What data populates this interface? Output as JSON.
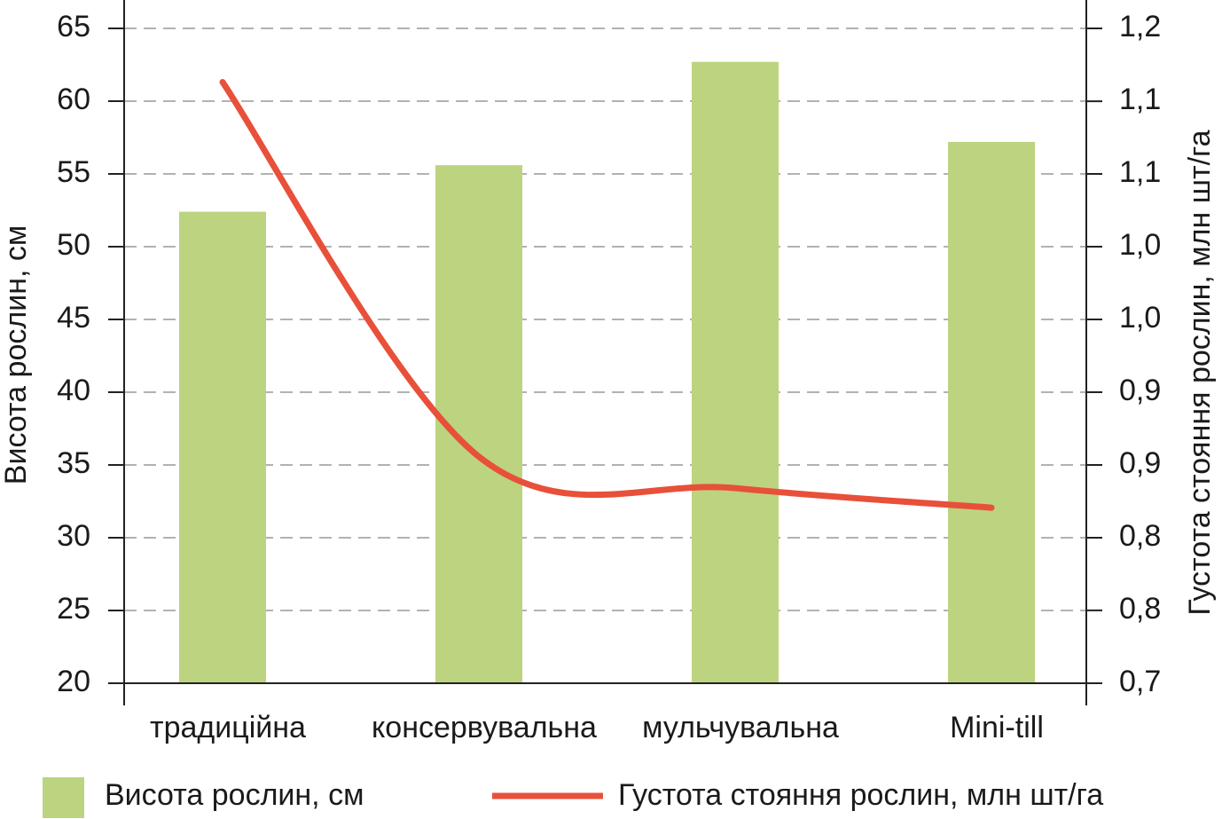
{
  "chart_data": {
    "type": "bar-line",
    "categories": [
      "традиційна",
      "консервувальна",
      "мульчувальна",
      "Mini-till"
    ],
    "y_label": "Висота рослин, см",
    "y2_label": "Густота стояння рослин, млн шт/га",
    "series": [
      {
        "name": "Висота рослин, см",
        "type": "bar",
        "color": "#bcd47f",
        "values": [
          52.4,
          55.6,
          62.7,
          57.2
        ]
      },
      {
        "name": "Густота стояння рослин, млн шт/га",
        "type": "line",
        "axis": "y2",
        "color": "#e8503a",
        "values": [
          1.159,
          0.873,
          0.849,
          0.834
        ]
      }
    ],
    "ylim": [
      20,
      65
    ],
    "yticks": [
      20,
      25,
      30,
      35,
      40,
      45,
      50,
      55,
      60,
      65
    ],
    "y2lim": [
      0.7,
      1.2
    ],
    "y2ticks": [
      {
        "value": 0.7,
        "label": "0,7"
      },
      {
        "value": 0.7556,
        "label": "0,8"
      },
      {
        "value": 0.8111,
        "label": "0,8"
      },
      {
        "value": 0.8667,
        "label": "0,9"
      },
      {
        "value": 0.9222,
        "label": "0,9"
      },
      {
        "value": 0.9778,
        "label": "1,0"
      },
      {
        "value": 1.0333,
        "label": "1,0"
      },
      {
        "value": 1.0889,
        "label": "1,1"
      },
      {
        "value": 1.1444,
        "label": "1,1"
      },
      {
        "value": 1.2,
        "label": "1,2"
      }
    ],
    "grid": true
  }
}
